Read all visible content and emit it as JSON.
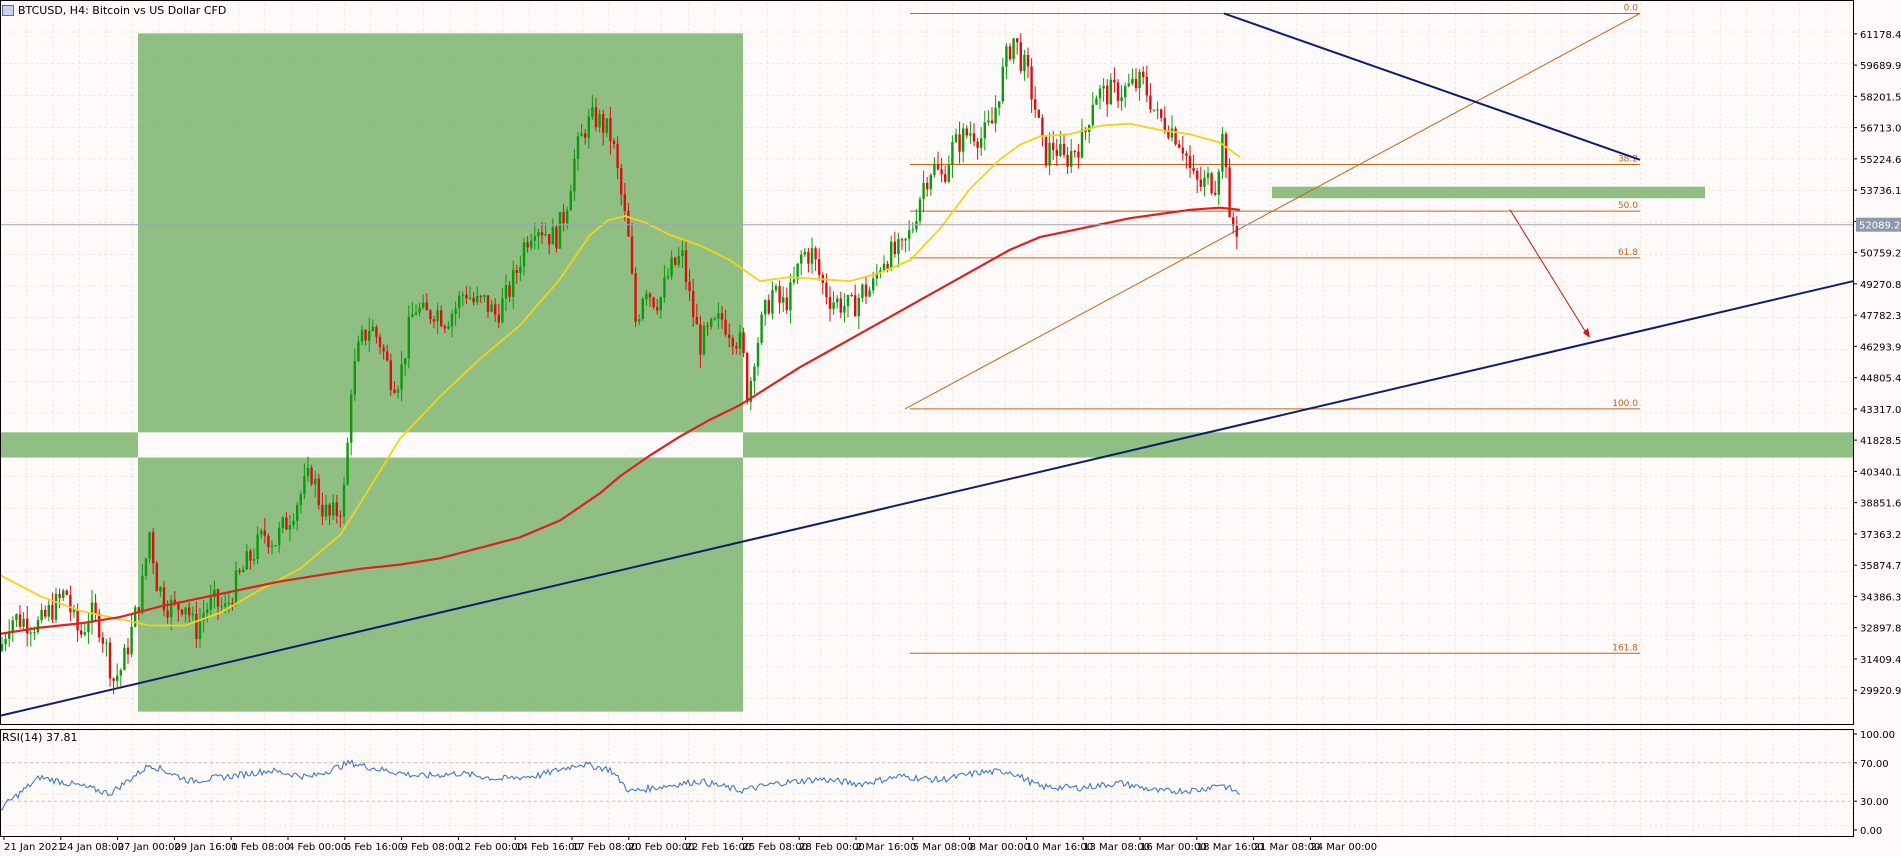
{
  "header": {
    "title": "BTCUSD, H4:  Bitcoin vs US Dollar CFD"
  },
  "indicator": {
    "label": "RSI(14) 37.81"
  },
  "chart_data": {
    "type": "candlestick",
    "symbol": "BTCUSD",
    "timeframe": "H4",
    "description": "Bitcoin vs US Dollar CFD",
    "current_price_label": "52089.24",
    "current_price": 52089.24,
    "ylim": [
      28500,
      62600
    ],
    "price_ticks": [
      "61178.40",
      "59689.90",
      "58201.50",
      "56713.05",
      "55224.60",
      "53736.15",
      "52247.70",
      "50759.25",
      "49270.80",
      "47782.35",
      "46293.90",
      "44805.45",
      "43317.00",
      "41828.55",
      "40340.10",
      "38851.65",
      "37363.20",
      "35874.75",
      "34386.30",
      "32897.85",
      "31409.40",
      "29920.95"
    ],
    "time_ticks": [
      "21 Jan 2021",
      "24 Jan 08:00",
      "27 Jan 00:00",
      "29 Jan 16:00",
      "1 Feb 08:00",
      "4 Feb 00:00",
      "6 Feb 16:00",
      "9 Feb 08:00",
      "12 Feb 00:00",
      "14 Feb 16:00",
      "17 Feb 08:00",
      "20 Feb 00:00",
      "22 Feb 16:00",
      "25 Feb 08:00",
      "28 Feb 00:00",
      "2 Mar 16:00",
      "5 Mar 08:00",
      "8 Mar 00:00",
      "10 Mar 16:00",
      "13 Mar 08:00",
      "16 Mar 00:00",
      "18 Mar 16:00",
      "21 Mar 08:00",
      "24 Mar 00:00"
    ],
    "price_path": [
      [
        0,
        31800
      ],
      [
        10,
        33400
      ],
      [
        28,
        33200
      ],
      [
        40,
        33000
      ],
      [
        50,
        33700
      ],
      [
        60,
        34200
      ],
      [
        66,
        34700
      ],
      [
        72,
        33400
      ],
      [
        80,
        32500
      ],
      [
        90,
        33600
      ],
      [
        100,
        33000
      ],
      [
        108,
        31600
      ],
      [
        113,
        30400
      ],
      [
        122,
        31000
      ],
      [
        132,
        32800
      ],
      [
        142,
        34800
      ],
      [
        150,
        37600
      ],
      [
        156,
        35200
      ],
      [
        165,
        34100
      ],
      [
        175,
        33800
      ],
      [
        185,
        34200
      ],
      [
        195,
        32700
      ],
      [
        205,
        33800
      ],
      [
        215,
        34100
      ],
      [
        225,
        33700
      ],
      [
        235,
        34900
      ],
      [
        245,
        35800
      ],
      [
        255,
        36600
      ],
      [
        265,
        37400
      ],
      [
        275,
        37000
      ],
      [
        285,
        37800
      ],
      [
        300,
        39200
      ],
      [
        312,
        40300
      ],
      [
        320,
        38800
      ],
      [
        330,
        38100
      ],
      [
        340,
        38600
      ],
      [
        346,
        39800
      ],
      [
        350,
        44200
      ],
      [
        360,
        46400
      ],
      [
        370,
        47300
      ],
      [
        380,
        46500
      ],
      [
        392,
        44700
      ],
      [
        400,
        44800
      ],
      [
        408,
        46900
      ],
      [
        415,
        48200
      ],
      [
        425,
        47700
      ],
      [
        435,
        48100
      ],
      [
        445,
        47600
      ],
      [
        455,
        48100
      ],
      [
        465,
        49000
      ],
      [
        475,
        48300
      ],
      [
        485,
        48400
      ],
      [
        495,
        47800
      ],
      [
        505,
        48500
      ],
      [
        515,
        49600
      ],
      [
        525,
        51300
      ],
      [
        535,
        52200
      ],
      [
        545,
        51800
      ],
      [
        555,
        51400
      ],
      [
        565,
        52700
      ],
      [
        575,
        55300
      ],
      [
        585,
        56700
      ],
      [
        595,
        57200
      ],
      [
        605,
        56700
      ],
      [
        612,
        56200
      ],
      [
        620,
        53800
      ],
      [
        628,
        51500
      ],
      [
        636,
        47300
      ],
      [
        645,
        49400
      ],
      [
        652,
        48600
      ],
      [
        660,
        48500
      ],
      [
        670,
        49900
      ],
      [
        682,
        50600
      ],
      [
        690,
        48500
      ],
      [
        700,
        46400
      ],
      [
        710,
        47000
      ],
      [
        722,
        47600
      ],
      [
        732,
        47000
      ],
      [
        742,
        46300
      ],
      [
        748,
        43800
      ],
      [
        754,
        45900
      ],
      [
        762,
        47400
      ],
      [
        772,
        48900
      ],
      [
        782,
        48200
      ],
      [
        792,
        48900
      ],
      [
        802,
        50700
      ],
      [
        812,
        50700
      ],
      [
        822,
        49300
      ],
      [
        830,
        48600
      ],
      [
        842,
        48300
      ],
      [
        852,
        48100
      ],
      [
        862,
        48900
      ],
      [
        872,
        49000
      ],
      [
        882,
        50500
      ],
      [
        892,
        50700
      ],
      [
        902,
        50800
      ],
      [
        912,
        51900
      ],
      [
        922,
        53900
      ],
      [
        932,
        54900
      ],
      [
        942,
        54300
      ],
      [
        952,
        55700
      ],
      [
        962,
        56200
      ],
      [
        972,
        56600
      ],
      [
        982,
        56200
      ],
      [
        992,
        56900
      ],
      [
        1000,
        58700
      ],
      [
        1008,
        60300
      ],
      [
        1014,
        61000
      ],
      [
        1020,
        60100
      ],
      [
        1028,
        59100
      ],
      [
        1036,
        57500
      ],
      [
        1044,
        55300
      ],
      [
        1054,
        55900
      ],
      [
        1064,
        55100
      ],
      [
        1074,
        55700
      ],
      [
        1084,
        56200
      ],
      [
        1094,
        58400
      ],
      [
        1104,
        58300
      ],
      [
        1114,
        58400
      ],
      [
        1124,
        58500
      ],
      [
        1134,
        58700
      ],
      [
        1142,
        58900
      ],
      [
        1150,
        58100
      ],
      [
        1158,
        57100
      ],
      [
        1166,
        57000
      ],
      [
        1176,
        56400
      ],
      [
        1184,
        55800
      ],
      [
        1192,
        54300
      ],
      [
        1200,
        53900
      ],
      [
        1208,
        54200
      ],
      [
        1216,
        54100
      ],
      [
        1222,
        56300
      ],
      [
        1226,
        55300
      ],
      [
        1230,
        51500
      ],
      [
        1234,
        52200
      ],
      [
        1238,
        51800
      ]
    ],
    "series": [
      {
        "name": "MA fast",
        "color": "#f5d21a",
        "points": [
          [
            0,
            35400
          ],
          [
            40,
            34400
          ],
          [
            80,
            33700
          ],
          [
            120,
            33300
          ],
          [
            150,
            33000
          ],
          [
            185,
            33000
          ],
          [
            220,
            33600
          ],
          [
            260,
            34700
          ],
          [
            300,
            35700
          ],
          [
            340,
            37300
          ],
          [
            360,
            38800
          ],
          [
            400,
            41900
          ],
          [
            440,
            43900
          ],
          [
            480,
            45700
          ],
          [
            520,
            47300
          ],
          [
            560,
            49500
          ],
          [
            590,
            51600
          ],
          [
            608,
            52300
          ],
          [
            625,
            52500
          ],
          [
            645,
            52200
          ],
          [
            670,
            51600
          ],
          [
            700,
            51100
          ],
          [
            730,
            50400
          ],
          [
            760,
            49400
          ],
          [
            790,
            49600
          ],
          [
            820,
            49500
          ],
          [
            850,
            49400
          ],
          [
            880,
            49800
          ],
          [
            910,
            50400
          ],
          [
            940,
            51900
          ],
          [
            970,
            53800
          ],
          [
            1000,
            55200
          ],
          [
            1020,
            55900
          ],
          [
            1040,
            56300
          ],
          [
            1070,
            56400
          ],
          [
            1100,
            56800
          ],
          [
            1130,
            56900
          ],
          [
            1160,
            56600
          ],
          [
            1190,
            56400
          ],
          [
            1220,
            56000
          ],
          [
            1240,
            55300
          ]
        ]
      },
      {
        "name": "MA slow",
        "color": "#e02020",
        "points": [
          [
            0,
            32600
          ],
          [
            40,
            32900
          ],
          [
            80,
            33100
          ],
          [
            120,
            33400
          ],
          [
            160,
            33900
          ],
          [
            200,
            34300
          ],
          [
            240,
            34700
          ],
          [
            280,
            35100
          ],
          [
            320,
            35400
          ],
          [
            360,
            35700
          ],
          [
            400,
            35900
          ],
          [
            440,
            36200
          ],
          [
            480,
            36700
          ],
          [
            520,
            37200
          ],
          [
            560,
            38000
          ],
          [
            600,
            39300
          ],
          [
            620,
            40100
          ],
          [
            650,
            41100
          ],
          [
            680,
            42000
          ],
          [
            710,
            42800
          ],
          [
            740,
            43500
          ],
          [
            770,
            44400
          ],
          [
            800,
            45300
          ],
          [
            830,
            46100
          ],
          [
            860,
            46900
          ],
          [
            890,
            47700
          ],
          [
            920,
            48500
          ],
          [
            950,
            49300
          ],
          [
            980,
            50100
          ],
          [
            1010,
            50900
          ],
          [
            1040,
            51500
          ],
          [
            1070,
            51800
          ],
          [
            1100,
            52100
          ],
          [
            1130,
            52400
          ],
          [
            1160,
            52600
          ],
          [
            1190,
            52800
          ],
          [
            1220,
            52900
          ],
          [
            1240,
            52800
          ]
        ]
      },
      {
        "name": "RSI(14)",
        "color": "#2f6fc4",
        "points": [
          [
            0,
            22
          ],
          [
            40,
            55
          ],
          [
            80,
            46
          ],
          [
            110,
            38
          ],
          [
            150,
            68
          ],
          [
            190,
            51
          ],
          [
            230,
            56
          ],
          [
            270,
            62
          ],
          [
            310,
            55
          ],
          [
            350,
            70
          ],
          [
            380,
            63
          ],
          [
            420,
            56
          ],
          [
            460,
            59
          ],
          [
            500,
            53
          ],
          [
            540,
            57
          ],
          [
            580,
            69
          ],
          [
            610,
            63
          ],
          [
            630,
            40
          ],
          [
            660,
            45
          ],
          [
            700,
            51
          ],
          [
            740,
            41
          ],
          [
            780,
            49
          ],
          [
            820,
            53
          ],
          [
            860,
            48
          ],
          [
            900,
            56
          ],
          [
            940,
            52
          ],
          [
            980,
            60
          ],
          [
            1010,
            61
          ],
          [
            1040,
            45
          ],
          [
            1080,
            44
          ],
          [
            1120,
            49
          ],
          [
            1160,
            40
          ],
          [
            1200,
            42
          ],
          [
            1220,
            48
          ],
          [
            1240,
            37.81
          ]
        ]
      }
    ],
    "rsi": {
      "value": 37.81,
      "ylim": [
        0,
        100
      ],
      "ticks": [
        "100.00",
        "70.00",
        "30.00",
        "0.00"
      ]
    },
    "fibonacci": {
      "high": 62150,
      "low": 43317,
      "levels": [
        {
          "label": "0.0",
          "price": 62150
        },
        {
          "label": "38.2",
          "price": 54956
        },
        {
          "label": "50.0",
          "price": 52734
        },
        {
          "label": "61.8",
          "price": 50511
        },
        {
          "label": "100.0",
          "price": 43317
        },
        {
          "label": "161.8",
          "price": 31678
        }
      ]
    },
    "support_zones": [
      {
        "price_low": 41000,
        "price_high": 42200
      },
      {
        "price_low": 53350,
        "price_high": 53900
      }
    ],
    "colors": {
      "up": "#0a9a0a",
      "down": "#d81010",
      "zone": "#7db46f",
      "trendline": "#101c6e",
      "fib": "#c0651a",
      "grid": "#e6c9a3",
      "price_line": "#9ba7b7"
    }
  }
}
